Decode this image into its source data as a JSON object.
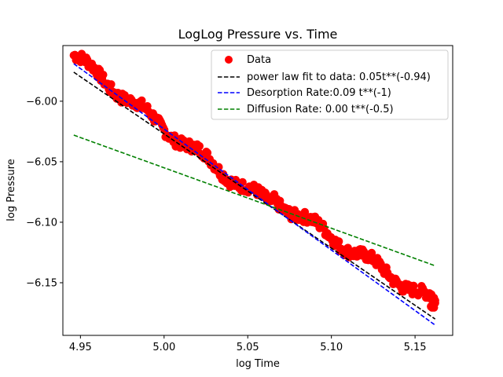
{
  "chart_data": {
    "type": "scatter",
    "title": "LogLog Pressure vs. Time",
    "xlabel": "log Time",
    "ylabel": "log Pressure",
    "xlim": [
      4.9395,
      5.1725
    ],
    "ylim": [
      -6.1935,
      -5.954
    ],
    "x_ticks": [
      4.95,
      5.0,
      5.05,
      5.1,
      5.15
    ],
    "x_tick_labels": [
      "4.95",
      "5.00",
      "5.05",
      "5.10",
      "5.15"
    ],
    "y_ticks": [
      -6.0,
      -6.05,
      -6.1,
      -6.15
    ],
    "y_tick_labels": [
      "−6.00",
      "−6.05",
      "−6.10",
      "−6.15"
    ],
    "grid": false,
    "legend_position": "top-right",
    "colors": {
      "data": "#ff0000",
      "fit": "#000000",
      "desorption": "#0000ff",
      "diffusion": "#008000"
    },
    "data_series": {
      "name": "Data",
      "x_range": [
        4.946,
        5.162
      ],
      "y_start": -5.962,
      "y_end": -6.167,
      "noise": 0.0045
    },
    "lines": [
      {
        "name": "power law fit to data: 0.05t**(-0.94)",
        "color": "#000000",
        "dash": true,
        "x": [
          4.946,
          5.162
        ],
        "y": [
          -5.976,
          -6.18
        ]
      },
      {
        "name": "Desorption Rate:0.09  t**(-1)",
        "color": "#0000ff",
        "dash": true,
        "x": [
          4.946,
          5.162
        ],
        "y": [
          -5.969,
          -6.185
        ]
      },
      {
        "name": "Diffusion Rate: 0.00 t**(-0.5)",
        "color": "#008000",
        "dash": true,
        "x": [
          4.946,
          5.162
        ],
        "y": [
          -6.028,
          -6.136
        ]
      }
    ]
  }
}
